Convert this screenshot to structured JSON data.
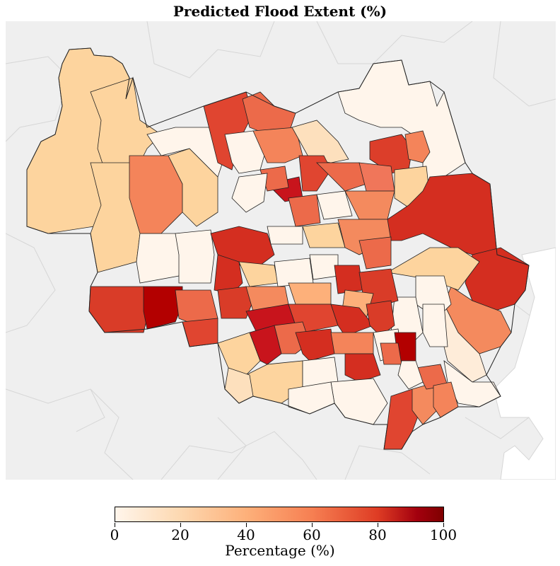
{
  "title": "Predicted Flood Extent (%)",
  "colorbar": {
    "label": "Percentage (%)",
    "ticks": [
      "0",
      "20",
      "40",
      "60",
      "80",
      "100"
    ],
    "min": 0,
    "max": 100,
    "colormap": "OrRd"
  },
  "colors": {
    "background_region": "#efefef",
    "background_border": "#d4d4d4",
    "zip_border": "#1a1a1a"
  },
  "regions": [
    {
      "id": "northwest-large",
      "value": 20
    },
    {
      "id": "north-central-west",
      "value": 20
    },
    {
      "id": "west-mid",
      "value": 20
    },
    {
      "id": "north-red-1",
      "value": 75
    },
    {
      "id": "north-red-2",
      "value": 65
    },
    {
      "id": "north-east-small",
      "value": 5
    },
    {
      "id": "north-east-large",
      "value": 3
    },
    {
      "id": "northeast-red",
      "value": 78
    },
    {
      "id": "northeast-orange",
      "value": 55
    },
    {
      "id": "east-large-red",
      "value": 82
    },
    {
      "id": "east-red-2",
      "value": 82
    },
    {
      "id": "east-orange",
      "value": 60
    },
    {
      "id": "east-pale",
      "value": 8
    },
    {
      "id": "southwest-red",
      "value": 75
    },
    {
      "id": "southwest-dark",
      "value": 95
    },
    {
      "id": "south-pale",
      "value": 15
    },
    {
      "id": "south-red",
      "value": 70
    },
    {
      "id": "southeast-orange",
      "value": 55
    },
    {
      "id": "center-mixed",
      "value": 50
    }
  ]
}
